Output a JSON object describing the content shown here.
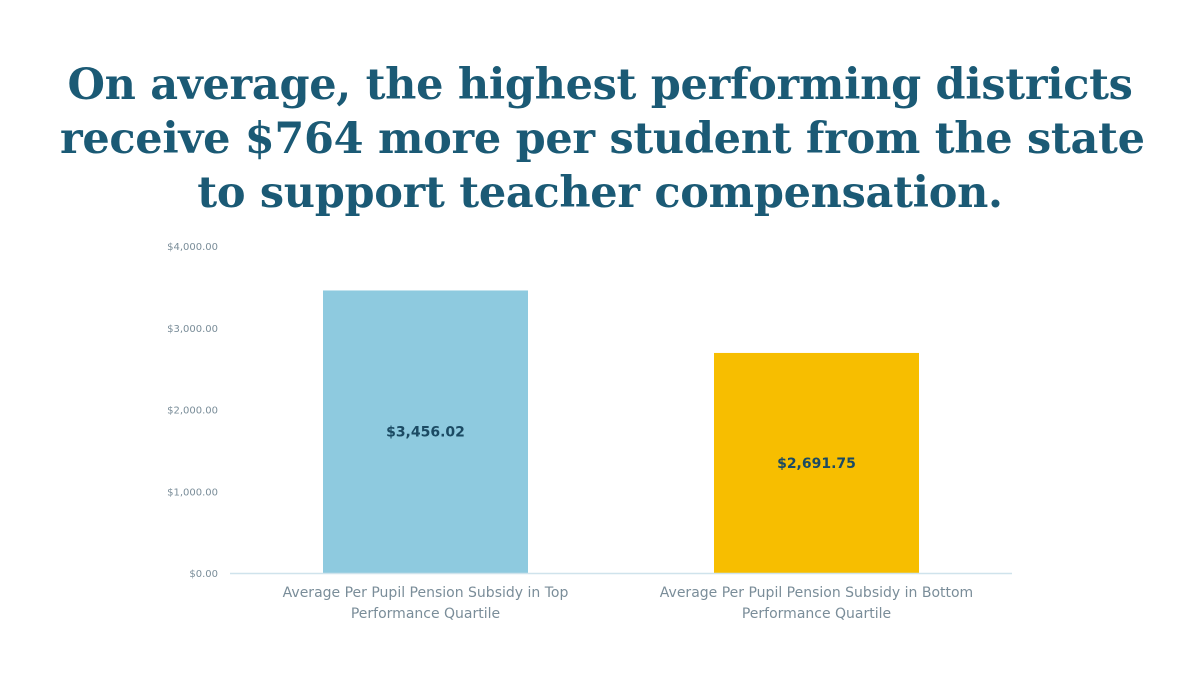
{
  "headline": {
    "line1": "On average, the highest performing districts",
    "line2": "receive $764 more per student from the state",
    "line3": "to support teacher compensation."
  },
  "colors": {
    "headline": "#1b5a75",
    "axis_text": "#7a8d99",
    "axis_line": "#cfe3ec",
    "bar_label": "#1b4a63"
  },
  "chart_data": {
    "type": "bar",
    "title": "",
    "xlabel": "",
    "ylabel": "",
    "ylim": [
      0,
      4000
    ],
    "yticks": [
      {
        "value": 0,
        "label": "$0.00"
      },
      {
        "value": 1000,
        "label": "$1,000.00"
      },
      {
        "value": 2000,
        "label": "$2,000.00"
      },
      {
        "value": 3000,
        "label": "$3,000.00"
      },
      {
        "value": 4000,
        "label": "$4,000.00"
      }
    ],
    "grid": false,
    "legend": "none",
    "categories": [
      "Average Per Pupil Pension Subsidy in Top Performance Quartile",
      "Average Per Pupil Pension Subsidy in Bottom Performance Quartile"
    ],
    "category_lines": [
      [
        "Average Per Pupil Pension Subsidy in Top",
        "Performance Quartile"
      ],
      [
        "Average Per Pupil Pension Subsidy in Bottom",
        "Performance Quartile"
      ]
    ],
    "values": [
      3456.02,
      2691.75
    ],
    "value_labels": [
      "$3,456.02",
      "$2,691.75"
    ],
    "bar_colors": [
      "#8ecadf",
      "#f7be00"
    ]
  }
}
